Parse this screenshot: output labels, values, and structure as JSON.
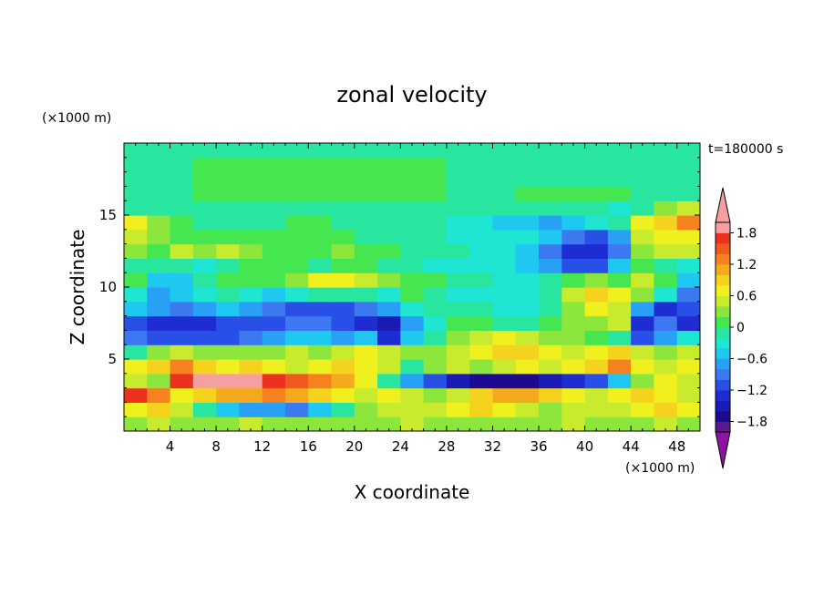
{
  "chart_data": {
    "type": "heatmap",
    "title": "zonal velocity",
    "xlabel": "X coordinate",
    "ylabel": "Z coordinate",
    "x_unit": "(×1000 m)",
    "y_unit": "(×1000 m)",
    "time_label": "t=180000 s",
    "xlim": [
      0,
      50
    ],
    "ylim": [
      0,
      20
    ],
    "x_ticks": [
      4,
      8,
      12,
      16,
      20,
      24,
      28,
      32,
      36,
      40,
      44,
      48
    ],
    "y_ticks": [
      5,
      10,
      15
    ],
    "x": [
      1,
      3,
      5,
      7,
      9,
      11,
      13,
      15,
      17,
      19,
      21,
      23,
      25,
      27,
      29,
      31,
      33,
      35,
      37,
      39,
      41,
      43,
      45,
      47,
      49
    ],
    "y": [
      0.5,
      1.5,
      2.5,
      3.5,
      4.5,
      5.5,
      6.5,
      7.5,
      8.5,
      9.5,
      10.5,
      11.5,
      12.5,
      13.5,
      14.5,
      15.5,
      16.5,
      17.5,
      18.5,
      19.5
    ],
    "z": [
      [
        0.2,
        0.4,
        0.3,
        0.2,
        0.3,
        0.4,
        0.3,
        0.2,
        0.3,
        0.3,
        0.2,
        0.3,
        0.4,
        0.3,
        0.2,
        0.3,
        0.3,
        0.2,
        0.3,
        0.4,
        0.3,
        0.2,
        0.3,
        0.4,
        0.3
      ],
      [
        0.6,
        0.8,
        0.4,
        -0.2,
        -0.6,
        -0.8,
        -0.8,
        -1.0,
        -0.6,
        -0.2,
        0.2,
        0.4,
        0.5,
        0.4,
        0.6,
        0.8,
        0.6,
        0.4,
        0.3,
        0.4,
        0.5,
        0.4,
        0.6,
        0.8,
        0.6
      ],
      [
        1.6,
        1.2,
        0.6,
        0.8,
        1.0,
        1.0,
        1.2,
        1.0,
        0.8,
        0.6,
        0.4,
        0.6,
        0.4,
        0.3,
        0.4,
        0.8,
        1.0,
        1.0,
        0.8,
        0.6,
        0.4,
        0.6,
        0.8,
        0.6,
        0.4
      ],
      [
        0.4,
        0.2,
        1.6,
        1.9,
        1.9,
        1.8,
        1.6,
        1.4,
        1.2,
        1.0,
        0.6,
        -0.2,
        -0.8,
        -1.2,
        -1.6,
        -1.8,
        -1.8,
        -1.8,
        -1.6,
        -1.4,
        -1.2,
        -0.6,
        0.2,
        0.6,
        0.4
      ],
      [
        0.6,
        0.8,
        1.2,
        0.8,
        0.6,
        0.8,
        0.6,
        0.4,
        0.6,
        0.8,
        0.6,
        0.4,
        -0.2,
        0.2,
        0.4,
        0.2,
        0.4,
        0.6,
        0.4,
        0.6,
        0.8,
        1.2,
        0.6,
        0.4,
        0.6
      ],
      [
        -0.2,
        0.2,
        0.4,
        0.2,
        0.2,
        0.2,
        0.3,
        0.4,
        0.2,
        0.4,
        0.6,
        0.4,
        0.2,
        0.2,
        0.4,
        0.6,
        0.8,
        0.8,
        0.6,
        0.4,
        0.6,
        0.8,
        0.4,
        0.2,
        0.4
      ],
      [
        -1.0,
        -1.2,
        -1.2,
        -1.2,
        -1.2,
        -1.0,
        -0.8,
        -0.6,
        -0.6,
        -0.8,
        -0.6,
        -1.4,
        -0.6,
        -0.2,
        0.2,
        0.4,
        0.6,
        0.4,
        0.2,
        0.2,
        0.0,
        -0.2,
        -1.2,
        -0.8,
        -0.4
      ],
      [
        -1.2,
        -1.4,
        -1.4,
        -1.4,
        -1.2,
        -1.2,
        -1.2,
        -1.0,
        -1.0,
        -1.2,
        -1.4,
        -1.6,
        -0.8,
        -0.4,
        0.0,
        0.0,
        -0.2,
        -0.2,
        0.0,
        0.2,
        0.2,
        0.4,
        -1.4,
        -1.0,
        -1.4
      ],
      [
        -0.6,
        -0.8,
        -1.0,
        -0.8,
        -0.6,
        -0.8,
        -1.0,
        -1.2,
        -1.2,
        -1.2,
        -1.0,
        -0.8,
        -0.4,
        -0.2,
        -0.2,
        -0.2,
        -0.4,
        -0.4,
        -0.2,
        0.2,
        0.6,
        0.4,
        -0.8,
        -1.4,
        -1.2
      ],
      [
        -0.4,
        -0.8,
        -0.6,
        -0.4,
        -0.2,
        -0.4,
        -0.6,
        -0.4,
        -0.2,
        -0.2,
        -0.2,
        -0.4,
        0.0,
        -0.2,
        -0.4,
        -0.4,
        -0.4,
        -0.4,
        -0.2,
        0.4,
        0.8,
        0.6,
        0.2,
        -0.4,
        -1.0
      ],
      [
        0.0,
        -0.6,
        -0.6,
        -0.2,
        0.0,
        0.0,
        0.0,
        0.2,
        0.6,
        0.6,
        0.4,
        0.2,
        0.0,
        0.0,
        -0.2,
        -0.2,
        -0.4,
        -0.4,
        -0.2,
        0.0,
        0.2,
        0.0,
        0.4,
        0.0,
        -0.6
      ],
      [
        -0.2,
        -0.2,
        -0.2,
        -0.4,
        -0.2,
        0.0,
        0.0,
        0.0,
        -0.2,
        0.0,
        0.0,
        -0.2,
        -0.2,
        -0.4,
        -0.4,
        -0.4,
        -0.4,
        -0.6,
        -0.8,
        -1.2,
        -1.2,
        -0.6,
        0.0,
        -0.2,
        -0.4
      ],
      [
        0.2,
        0.0,
        0.4,
        0.2,
        0.4,
        0.2,
        0.0,
        0.0,
        0.0,
        0.2,
        0.0,
        0.0,
        -0.2,
        -0.2,
        -0.2,
        -0.4,
        -0.4,
        -0.6,
        -1.0,
        -1.4,
        -1.4,
        -1.0,
        0.2,
        0.4,
        0.4
      ],
      [
        0.4,
        0.2,
        0.0,
        0.0,
        0.0,
        0.0,
        0.0,
        0.0,
        0.0,
        0.0,
        -0.2,
        -0.2,
        -0.2,
        -0.2,
        -0.4,
        -0.4,
        -0.4,
        -0.4,
        -0.6,
        -1.0,
        -1.2,
        -0.8,
        0.4,
        0.6,
        0.6
      ],
      [
        0.6,
        0.2,
        0.0,
        -0.2,
        -0.2,
        -0.2,
        -0.2,
        0.0,
        0.0,
        -0.2,
        -0.2,
        -0.2,
        -0.2,
        -0.2,
        -0.4,
        -0.4,
        -0.6,
        -0.6,
        -0.8,
        -0.6,
        -0.4,
        -0.2,
        0.6,
        0.8,
        1.2
      ],
      [
        -0.2,
        -0.2,
        -0.2,
        -0.2,
        -0.2,
        -0.2,
        -0.2,
        -0.2,
        -0.2,
        -0.2,
        -0.2,
        -0.2,
        -0.2,
        -0.2,
        -0.2,
        -0.2,
        -0.2,
        -0.2,
        -0.2,
        -0.2,
        -0.2,
        -0.4,
        -0.2,
        0.2,
        0.4
      ],
      [
        -0.2,
        -0.2,
        -0.2,
        0.0,
        0.0,
        0.0,
        0.0,
        0.0,
        0.0,
        0.0,
        0.0,
        0.0,
        0.0,
        0.0,
        -0.2,
        -0.2,
        -0.2,
        0.0,
        0.0,
        0.0,
        0.0,
        0.0,
        -0.2,
        -0.2,
        -0.2
      ],
      [
        -0.2,
        -0.2,
        -0.2,
        0.0,
        0.0,
        0.0,
        0.0,
        0.0,
        0.0,
        0.0,
        0.0,
        0.0,
        0.0,
        0.0,
        -0.2,
        -0.2,
        -0.2,
        -0.2,
        -0.2,
        -0.2,
        -0.2,
        -0.2,
        -0.2,
        -0.2,
        -0.2
      ],
      [
        -0.2,
        -0.2,
        -0.2,
        0.0,
        0.0,
        0.0,
        0.0,
        0.0,
        0.0,
        0.0,
        0.0,
        0.0,
        0.0,
        0.0,
        -0.2,
        -0.2,
        -0.2,
        -0.2,
        -0.2,
        -0.2,
        -0.2,
        -0.2,
        -0.2,
        -0.2,
        -0.2
      ],
      [
        -0.2,
        -0.2,
        -0.2,
        -0.2,
        -0.2,
        -0.2,
        -0.2,
        -0.2,
        -0.2,
        -0.2,
        -0.2,
        -0.2,
        -0.2,
        -0.2,
        -0.2,
        -0.2,
        -0.2,
        -0.2,
        -0.2,
        -0.2,
        -0.2,
        -0.2,
        -0.2,
        -0.2,
        -0.2
      ]
    ],
    "colorbar": {
      "levels": [
        -2.0,
        -1.8,
        -1.6,
        -1.4,
        -1.2,
        -1.0,
        -0.8,
        -0.6,
        -0.4,
        -0.2,
        0.0,
        0.2,
        0.4,
        0.6,
        0.8,
        1.0,
        1.2,
        1.4,
        1.6,
        1.8,
        2.0
      ],
      "colors": [
        "#5a1a8c",
        "#1c0a90",
        "#1a1ab4",
        "#1e2dd2",
        "#2850e6",
        "#3c78f0",
        "#28a0f5",
        "#1ec8f0",
        "#1ee6d2",
        "#28e6a0",
        "#46e650",
        "#8ce63c",
        "#c8eb2d",
        "#f0f01e",
        "#f5d21e",
        "#f5aa1e",
        "#f5821e",
        "#f05a1e",
        "#eb321e",
        "#f5a0a0"
      ],
      "under_color": "#8c14a0",
      "over_color": "#f5a0a0",
      "tick_labels": [
        "1.8",
        "1.2",
        "0.6",
        "0",
        "−0.6",
        "−1.2",
        "−1.8"
      ],
      "tick_values": [
        1.8,
        1.2,
        0.6,
        0.0,
        -0.6,
        -1.2,
        -1.8
      ]
    }
  }
}
